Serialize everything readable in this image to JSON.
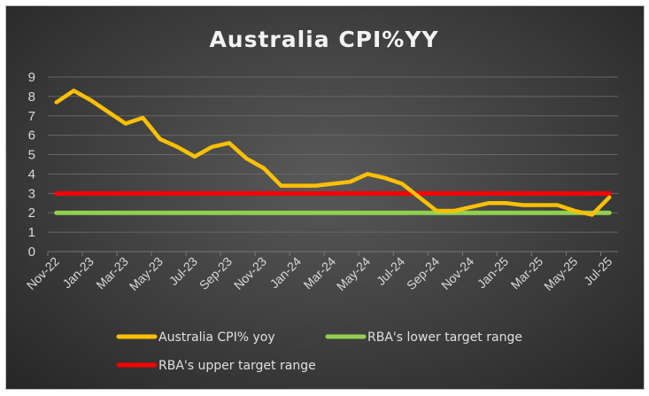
{
  "chart_data": {
    "type": "line",
    "title": "Australia CPI%YY",
    "xlabel": "",
    "ylabel": "",
    "ylim": [
      0,
      9
    ],
    "yticks": [
      "0",
      "1",
      "2",
      "3",
      "4",
      "5",
      "6",
      "7",
      "8",
      "9"
    ],
    "grid": true,
    "legend_position": "bottom",
    "x": [
      "Nov-22",
      "Dec-22",
      "Jan-23",
      "Feb-23",
      "Mar-23",
      "Apr-23",
      "May-23",
      "Jun-23",
      "Jul-23",
      "Aug-23",
      "Sep-23",
      "Oct-23",
      "Nov-23",
      "Dec-23",
      "Jan-24",
      "Feb-24",
      "Mar-24",
      "Apr-24",
      "May-24",
      "Jun-24",
      "Jul-24",
      "Aug-24",
      "Sep-24",
      "Oct-24",
      "Nov-24",
      "Dec-24",
      "Jan-25",
      "Feb-25",
      "Mar-25",
      "Apr-25",
      "May-25",
      "Jun-25",
      "Jul-25"
    ],
    "xtick_labels": [
      "Nov-22",
      "Jan-23",
      "Mar-23",
      "May-23",
      "Jul-23",
      "Sep-23",
      "Nov-23",
      "Jan-24",
      "Mar-24",
      "May-24",
      "Jul-24",
      "Sep-24",
      "Nov-24",
      "Jan-25",
      "Mar-25",
      "May-25",
      "Jul-25"
    ],
    "series": [
      {
        "name": "Australia CPI% yoy",
        "color": "#ffc000",
        "values": [
          7.7,
          8.3,
          7.8,
          7.2,
          6.6,
          6.9,
          5.8,
          5.4,
          4.9,
          5.4,
          5.6,
          4.8,
          4.3,
          3.4,
          3.4,
          3.4,
          3.5,
          3.6,
          4.0,
          3.8,
          3.5,
          2.8,
          2.1,
          2.1,
          2.3,
          2.5,
          2.5,
          2.4,
          2.4,
          2.4,
          2.1,
          1.9,
          2.8
        ]
      },
      {
        "name": "RBA's lower target range",
        "color": "#92d050",
        "constant": 2
      },
      {
        "name": "RBA's upper target range",
        "color": "#ff0000",
        "constant": 3
      }
    ]
  }
}
